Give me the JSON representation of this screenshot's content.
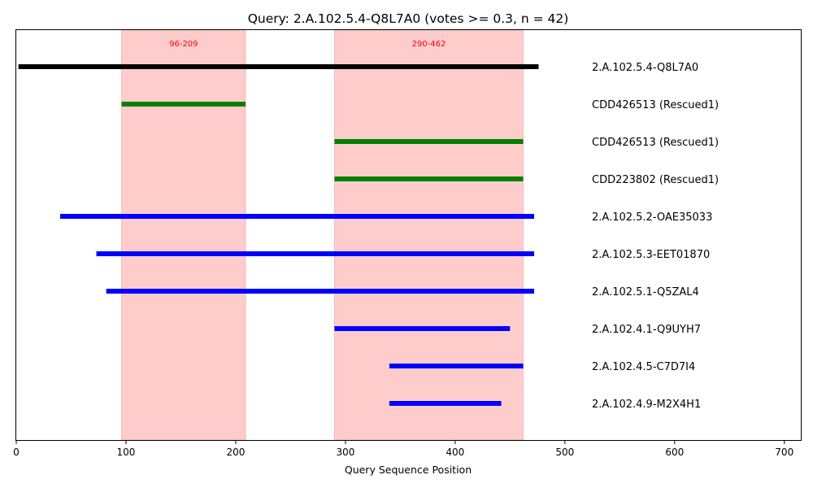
{
  "chart_data": {
    "type": "bar",
    "title": "Query: 2.A.102.5.4-Q8L7A0 (votes >= 0.3, n = 42)",
    "xlabel": "Query Sequence Position",
    "ylabel": "",
    "xlim": [
      0,
      715
    ],
    "xticks": [
      0,
      100,
      200,
      300,
      400,
      500,
      600,
      700
    ],
    "grid": false,
    "regions": [
      {
        "start": 96,
        "end": 209,
        "label": "96-209",
        "color": "#ff9999"
      },
      {
        "start": 290,
        "end": 462,
        "label": "290-462",
        "color": "#ff9999"
      }
    ],
    "series": [
      {
        "name": "2.A.102.5.4-Q8L7A0",
        "start": 2,
        "end": 476,
        "color": "#000000"
      },
      {
        "name": "CDD426513 (Rescued1)",
        "start": 96,
        "end": 209,
        "color": "#008000"
      },
      {
        "name": "CDD426513 (Rescued1)",
        "start": 290,
        "end": 462,
        "color": "#008000"
      },
      {
        "name": "CDD223802 (Rescued1)",
        "start": 290,
        "end": 462,
        "color": "#008000"
      },
      {
        "name": "2.A.102.5.2-OAE35033",
        "start": 40,
        "end": 472,
        "color": "#0000ff"
      },
      {
        "name": "2.A.102.5.3-EET01870",
        "start": 73,
        "end": 472,
        "color": "#0000ff"
      },
      {
        "name": "2.A.102.5.1-Q5ZAL4",
        "start": 82,
        "end": 472,
        "color": "#0000ff"
      },
      {
        "name": "2.A.102.4.1-Q9UYH7",
        "start": 290,
        "end": 450,
        "color": "#0000ff"
      },
      {
        "name": "2.A.102.4.5-C7D7I4",
        "start": 340,
        "end": 462,
        "color": "#0000ff"
      },
      {
        "name": "2.A.102.4.9-M2X4H1",
        "start": 340,
        "end": 442,
        "color": "#0000ff"
      }
    ]
  }
}
